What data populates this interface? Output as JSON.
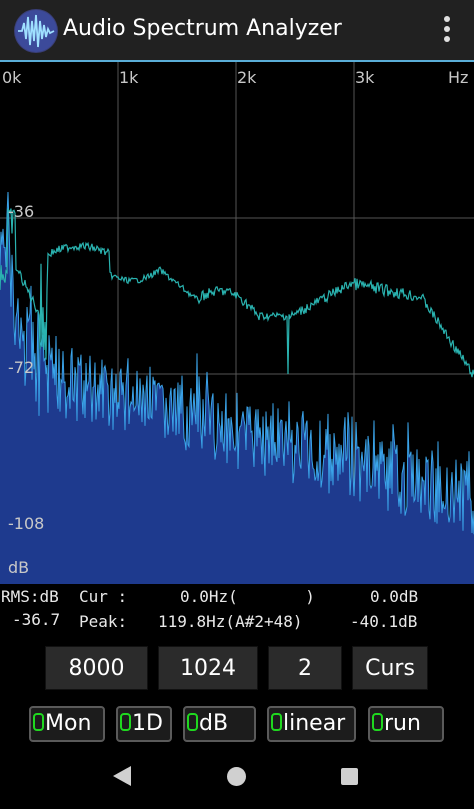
{
  "app": {
    "title": "Audio Spectrum Analyzer",
    "icons": {
      "logo": "waveform-logo-icon",
      "menu": "overflow-menu-icon"
    }
  },
  "spectrum": {
    "x_ticks": [
      "0k",
      "1k",
      "2k",
      "3k",
      "Hz"
    ],
    "y_ticks": [
      "-36",
      "-72",
      "-108",
      "dB"
    ],
    "colors": {
      "grid": "#555555",
      "spectrum_fill": "#1e3a8e",
      "spectrum_line": "#3aa3e8",
      "peak_hold": "#2ab3b0"
    }
  },
  "readouts": {
    "rms_label": "RMS:dB",
    "rms_value": "-36.7",
    "cur_label": "Cur :",
    "cur_value": "0.0Hz(       )",
    "cur_db": "0.0dB",
    "peak_label": "Peak:",
    "peak_value": "119.8Hz(A#2+48)",
    "peak_db": "-40.1dB"
  },
  "controls": {
    "sample_rate": "8000",
    "fft_length": "1024",
    "average": "2",
    "cursor": "Curs"
  },
  "toggles": [
    {
      "label": "Mon",
      "led_color": "#1fd81f"
    },
    {
      "label": "1D",
      "led_color": "#1fd81f"
    },
    {
      "label": "dB",
      "led_color": "#1fd81f"
    },
    {
      "label": "linear",
      "led_color": "#1fd81f"
    },
    {
      "label": "run",
      "led_color": "#1fd81f"
    }
  ],
  "navbar": {
    "back": "back-triangle-icon",
    "home": "home-circle-icon",
    "recents": "recents-square-icon"
  }
}
